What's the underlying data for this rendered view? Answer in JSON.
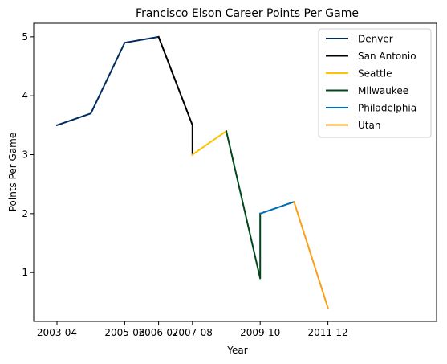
{
  "chart_data": {
    "type": "line",
    "title": "Francisco Elson Career Points Per Game",
    "xlabel": "Year",
    "ylabel": "Points Per Game",
    "x_ticks": [
      "2003-04",
      "2005-06",
      "2006-07",
      "2007-08",
      "2009-10",
      "2011-12"
    ],
    "y_ticks": [
      "1",
      "2",
      "3",
      "4",
      "5"
    ],
    "grid": false,
    "legend_position": "top-right",
    "x_categories": [
      "2003-04",
      "2004-05",
      "2005-06",
      "2006-07",
      "2007-08",
      "2008-09",
      "2009-10",
      "2010-11",
      "2011-12"
    ],
    "ylim": [
      0.17,
      5.23
    ],
    "series": [
      {
        "name": "Denver",
        "color": "#002B5C",
        "x": [
          "2003-04",
          "2004-05",
          "2005-06",
          "2006-07"
        ],
        "values": [
          3.5,
          3.7,
          4.9,
          5.0
        ]
      },
      {
        "name": "San Antonio",
        "color": "#000000",
        "x": [
          "2006-07",
          "2007-08",
          "2007-08"
        ],
        "values": [
          5.0,
          3.5,
          3.0
        ]
      },
      {
        "name": "Seattle",
        "color": "#FFC200",
        "x": [
          "2007-08",
          "2008-09"
        ],
        "values": [
          3.0,
          3.4
        ]
      },
      {
        "name": "Milwaukee",
        "color": "#00471B",
        "x": [
          "2008-09",
          "2009-10",
          "2009-10"
        ],
        "values": [
          3.4,
          0.9,
          2.0
        ]
      },
      {
        "name": "Philadelphia",
        "color": "#006BB6",
        "x": [
          "2009-10",
          "2010-11"
        ],
        "values": [
          2.0,
          2.2
        ]
      },
      {
        "name": "Utah",
        "color": "#F9A01B",
        "x": [
          "2010-11",
          "2011-12"
        ],
        "values": [
          2.2,
          0.4
        ]
      }
    ]
  }
}
